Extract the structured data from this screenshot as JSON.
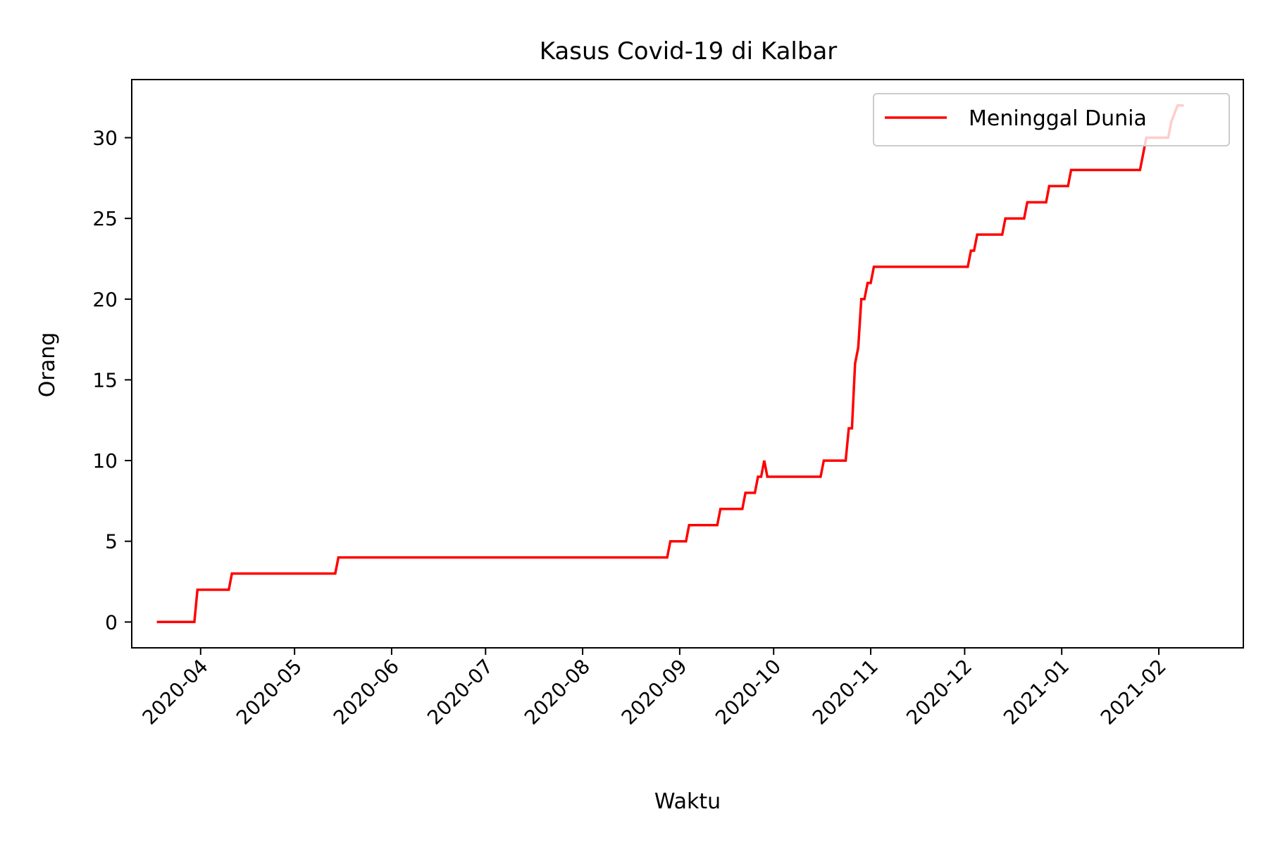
{
  "chart_data": {
    "type": "line",
    "title": "Kasus Covid-19 di Kalbar",
    "xlabel": "Waktu",
    "ylabel": "Orang",
    "xlim": [
      "2020-03-10",
      "2021-02-28"
    ],
    "ylim": [
      -1.6,
      33.6
    ],
    "grid": false,
    "legend": "top-right",
    "x_ticks": [
      "2020-04",
      "2020-05",
      "2020-06",
      "2020-07",
      "2020-08",
      "2020-09",
      "2020-10",
      "2020-11",
      "2020-12",
      "2021-01",
      "2021-02"
    ],
    "y_ticks": [
      0,
      5,
      10,
      15,
      20,
      25,
      30
    ],
    "series": [
      {
        "name": "Meninggal Dunia",
        "color": "#ff0000",
        "points": [
          [
            "2020-03-18",
            0
          ],
          [
            "2020-03-30",
            0
          ],
          [
            "2020-03-31",
            2
          ],
          [
            "2020-04-10",
            2
          ],
          [
            "2020-04-11",
            3
          ],
          [
            "2020-05-14",
            3
          ],
          [
            "2020-05-15",
            4
          ],
          [
            "2020-08-28",
            4
          ],
          [
            "2020-08-29",
            5
          ],
          [
            "2020-09-03",
            5
          ],
          [
            "2020-09-04",
            6
          ],
          [
            "2020-09-13",
            6
          ],
          [
            "2020-09-14",
            7
          ],
          [
            "2020-09-21",
            7
          ],
          [
            "2020-09-22",
            8
          ],
          [
            "2020-09-25",
            8
          ],
          [
            "2020-09-26",
            9
          ],
          [
            "2020-09-27",
            9
          ],
          [
            "2020-09-28",
            10
          ],
          [
            "2020-09-29",
            9
          ],
          [
            "2020-10-16",
            9
          ],
          [
            "2020-10-17",
            10
          ],
          [
            "2020-10-24",
            10
          ],
          [
            "2020-10-25",
            12
          ],
          [
            "2020-10-26",
            12
          ],
          [
            "2020-10-27",
            16
          ],
          [
            "2020-10-28",
            17
          ],
          [
            "2020-10-29",
            20
          ],
          [
            "2020-10-30",
            20
          ],
          [
            "2020-10-31",
            21
          ],
          [
            "2020-11-01",
            21
          ],
          [
            "2020-11-02",
            22
          ],
          [
            "2020-12-02",
            22
          ],
          [
            "2020-12-03",
            23
          ],
          [
            "2020-12-04",
            23
          ],
          [
            "2020-12-05",
            24
          ],
          [
            "2020-12-13",
            24
          ],
          [
            "2020-12-14",
            25
          ],
          [
            "2020-12-20",
            25
          ],
          [
            "2020-12-21",
            26
          ],
          [
            "2020-12-27",
            26
          ],
          [
            "2020-12-28",
            27
          ],
          [
            "2021-01-03",
            27
          ],
          [
            "2021-01-04",
            28
          ],
          [
            "2021-01-26",
            28
          ],
          [
            "2021-01-27",
            29
          ],
          [
            "2021-01-28",
            30
          ],
          [
            "2021-02-04",
            30
          ],
          [
            "2021-02-05",
            31
          ],
          [
            "2021-02-07",
            32
          ],
          [
            "2021-02-09",
            32
          ]
        ]
      }
    ]
  }
}
